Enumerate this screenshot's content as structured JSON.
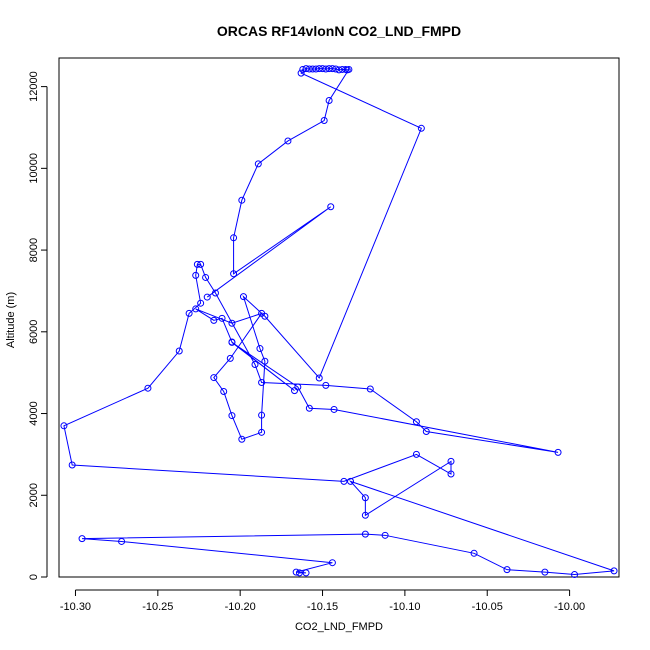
{
  "chart_data": {
    "type": "line",
    "title": "ORCAS RF14vlonN CO2_LND_FMPD",
    "xlabel": "CO2_LND_FMPD",
    "ylabel": "Altitude (m)",
    "xlim": [
      -10.31,
      -9.97
    ],
    "ylim": [
      0,
      12700
    ],
    "xticks": [
      -10.3,
      -10.25,
      -10.2,
      -10.15,
      -10.1,
      -10.05,
      -10.0
    ],
    "xtick_labels": [
      "-10.30",
      "-10.25",
      "-10.20",
      "-10.15",
      "-10.10",
      "-10.05",
      "-10.00"
    ],
    "yticks": [
      0,
      2000,
      4000,
      6000,
      8000,
      10000,
      12000
    ],
    "ytick_labels": [
      "0",
      "2000",
      "4000",
      "6000",
      "8000",
      "10000",
      "12000"
    ],
    "grid": false,
    "legend": false,
    "color": "#0000ff",
    "series": [
      {
        "x": [
          -10.164,
          -10.16,
          -10.166,
          -10.144,
          -10.272,
          -10.296,
          -10.124,
          -10.112,
          -10.058,
          -10.038,
          -10.015,
          -9.997,
          -9.973,
          -10.133,
          -10.124,
          -10.124,
          -10.072,
          -10.072,
          -10.093,
          -10.137,
          -10.302,
          -10.307,
          -10.256,
          -10.237,
          -10.231,
          -10.224,
          -10.227,
          -10.226,
          -10.224,
          -10.221,
          -10.215,
          -10.191,
          -10.187,
          -10.148,
          -10.121,
          -10.093,
          -10.087,
          -10.007,
          -10.143,
          -10.158,
          -10.165,
          -10.205,
          -10.167,
          -10.205,
          -10.211,
          -10.216,
          -10.227,
          -10.205,
          -10.187,
          -10.206,
          -10.216,
          -10.21,
          -10.205,
          -10.199,
          -10.187,
          -10.187,
          -10.185,
          -10.188,
          -10.198,
          -10.185,
          -10.152,
          -10.09,
          -10.163,
          -10.162,
          -10.16,
          -10.158,
          -10.156,
          -10.154,
          -10.152,
          -10.15,
          -10.148,
          -10.146,
          -10.144,
          -10.142,
          -10.14,
          -10.138,
          -10.136,
          -10.135,
          -10.134,
          -10.146,
          -10.149,
          -10.171,
          -10.189,
          -10.199,
          -10.204,
          -10.204,
          -10.145,
          -10.22
        ],
        "y": [
          100,
          100,
          120,
          350,
          870,
          940,
          1050,
          1020,
          580,
          180,
          120,
          60,
          150,
          2340,
          1940,
          1510,
          2830,
          2520,
          3000,
          2340,
          2740,
          3700,
          4620,
          5530,
          6450,
          6700,
          7380,
          7650,
          7650,
          7330,
          6950,
          5200,
          4760,
          4690,
          4600,
          3800,
          3560,
          3050,
          4100,
          4130,
          4650,
          5740,
          4560,
          5750,
          6330,
          6280,
          6560,
          6210,
          6450,
          5350,
          4880,
          4540,
          3950,
          3370,
          3540,
          3960,
          5280,
          5590,
          6860,
          6380,
          4870,
          10980,
          12330,
          12420,
          12440,
          12430,
          12430,
          12430,
          12440,
          12440,
          12430,
          12440,
          12440,
          12430,
          12410,
          12420,
          12420,
          12410,
          12420,
          11660,
          11170,
          10670,
          10110,
          9220,
          8300,
          7420,
          9060,
          6850
        ]
      }
    ]
  }
}
